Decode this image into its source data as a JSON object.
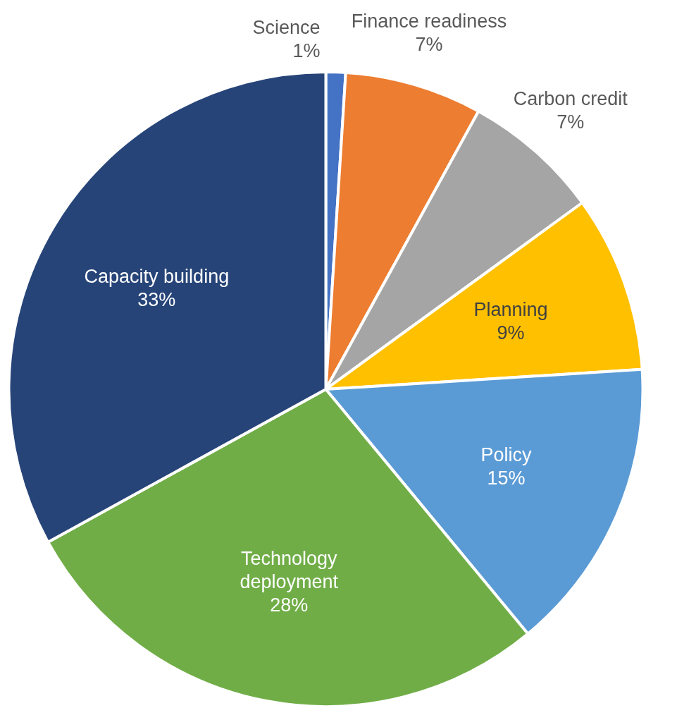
{
  "chart_data": {
    "type": "pie",
    "categories": [
      "Science",
      "Finance readiness",
      "Carbon credit",
      "Planning",
      "Policy",
      "Technology deployment",
      "Capacity building"
    ],
    "values": [
      1,
      7,
      7,
      9,
      15,
      28,
      33
    ],
    "colors": [
      "#4472c4",
      "#ed7d31",
      "#a5a5a5",
      "#ffc000",
      "#5b9bd5",
      "#70ad47",
      "#264478"
    ],
    "value_labels": [
      "1%",
      "7%",
      "7%",
      "9%",
      "15%",
      "28%",
      "33%"
    ],
    "legend": false
  }
}
